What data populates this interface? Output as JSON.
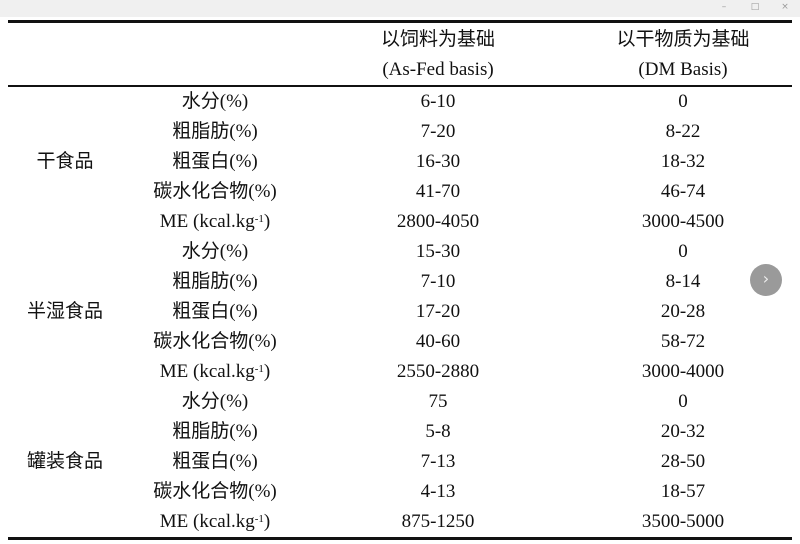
{
  "window": {
    "minimize": "–",
    "maximize": "□",
    "close": "×"
  },
  "header": {
    "col3_line1": "以饲料为基础",
    "col3_line2": "(As-Fed basis)",
    "col4_line1": "以干物质为基础",
    "col4_line2": "(DM Basis)"
  },
  "groups": [
    {
      "name": "干食品",
      "rows": [
        [
          "水分(%)",
          "6-10",
          "0"
        ],
        [
          "粗脂肪(%)",
          "7-20",
          "8-22"
        ],
        [
          "粗蛋白(%)",
          "16-30",
          "18-32"
        ],
        [
          "碳水化合物(%)",
          "41-70",
          "46-74"
        ],
        [
          "ME (kcal.kg",
          "2800-4050",
          "3000-4500"
        ]
      ]
    },
    {
      "name": "半湿食品",
      "rows": [
        [
          "水分(%)",
          "15-30",
          "0"
        ],
        [
          "粗脂肪(%)",
          "7-10",
          "8-14"
        ],
        [
          "粗蛋白(%)",
          "17-20",
          "20-28"
        ],
        [
          "碳水化合物(%)",
          "40-60",
          "58-72"
        ],
        [
          "ME (kcal.kg",
          "2550-2880",
          "3000-4000"
        ]
      ]
    },
    {
      "name": "罐装食品",
      "rows": [
        [
          "水分(%)",
          "75",
          "0"
        ],
        [
          "粗脂肪(%)",
          "5-8",
          "20-32"
        ],
        [
          "粗蛋白(%)",
          "7-13",
          "28-50"
        ],
        [
          "碳水化合物(%)",
          "4-13",
          "18-57"
        ],
        [
          "ME (kcal.kg",
          "875-1250",
          "3500-5000"
        ]
      ]
    }
  ],
  "me_unit_sup": "-1",
  "me_unit_close": ")",
  "next_button": "›"
}
